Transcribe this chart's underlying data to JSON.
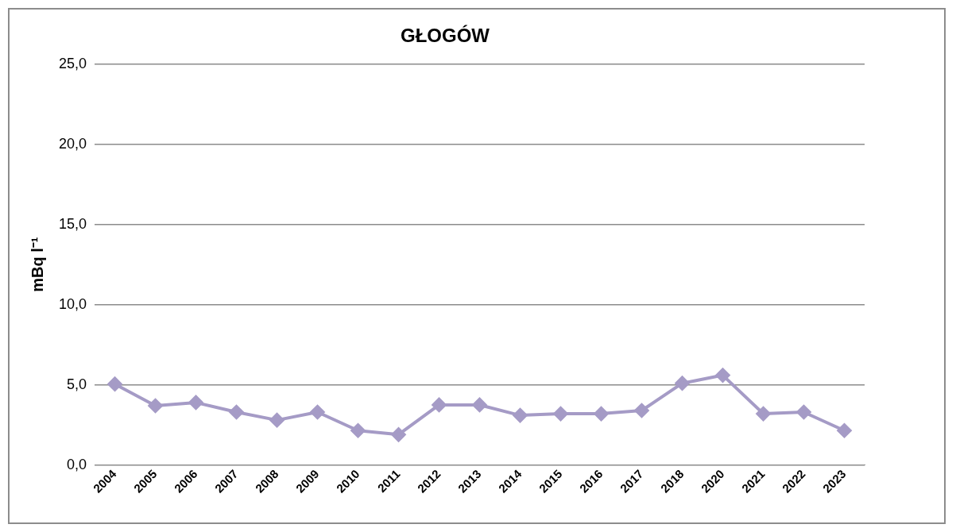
{
  "chart_data": {
    "type": "line",
    "title": "GŁOGÓW",
    "ylabel": "mBq l⁻¹",
    "categories": [
      "2004",
      "2005",
      "2006",
      "2007",
      "2008",
      "2009",
      "2010",
      "2011",
      "2012",
      "2013",
      "2014",
      "2015",
      "2016",
      "2017",
      "2018",
      "2020",
      "2021",
      "2022",
      "2023"
    ],
    "series": [
      {
        "color": "#a59bc6",
        "values": [
          5.05,
          3.7,
          3.9,
          3.3,
          2.8,
          3.3,
          2.15,
          1.9,
          3.75,
          3.75,
          3.1,
          3.2,
          3.2,
          3.4,
          5.1,
          5.6,
          3.2,
          3.3,
          2.15
        ]
      }
    ],
    "ylim": [
      0,
      25
    ],
    "yticks": [
      {
        "value": 0,
        "label": "0,0"
      },
      {
        "value": 5,
        "label": "5,0"
      },
      {
        "value": 10,
        "label": "10,0"
      },
      {
        "value": 15,
        "label": "15,0"
      },
      {
        "value": 20,
        "label": "20,0"
      },
      {
        "value": 25,
        "label": "25,0"
      }
    ],
    "grid": "y",
    "legend": false,
    "marker": "diamond",
    "line_style": "solid"
  }
}
